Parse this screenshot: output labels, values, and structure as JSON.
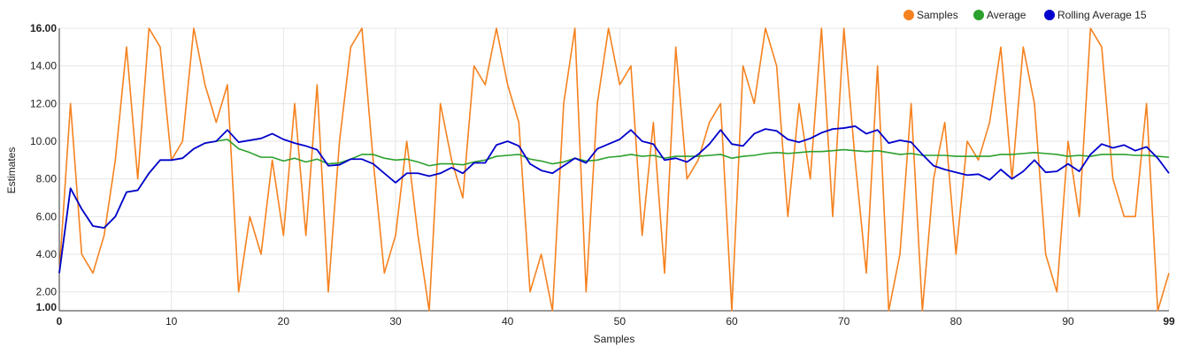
{
  "chart_data": {
    "type": "line",
    "xlabel": "Samples",
    "ylabel": "Estimates",
    "xlim": [
      0,
      99
    ],
    "ylim": [
      1,
      16
    ],
    "x_ticks": [
      {
        "value": 0,
        "label": "0"
      },
      {
        "value": 10,
        "label": "10"
      },
      {
        "value": 20,
        "label": "20"
      },
      {
        "value": 30,
        "label": "30"
      },
      {
        "value": 40,
        "label": "40"
      },
      {
        "value": 50,
        "label": "50"
      },
      {
        "value": 60,
        "label": "60"
      },
      {
        "value": 70,
        "label": "70"
      },
      {
        "value": 80,
        "label": "80"
      },
      {
        "value": 90,
        "label": "90"
      },
      {
        "value": 99,
        "label": "99"
      }
    ],
    "y_ticks": [
      {
        "value": 1,
        "label": "1.00"
      },
      {
        "value": 2,
        "label": "2.00"
      },
      {
        "value": 4,
        "label": "4.00"
      },
      {
        "value": 6,
        "label": "6.00"
      },
      {
        "value": 8,
        "label": "8.00"
      },
      {
        "value": 10,
        "label": "10.00"
      },
      {
        "value": 12,
        "label": "12.00"
      },
      {
        "value": 14,
        "label": "14.00"
      },
      {
        "value": 16,
        "label": "16.00"
      }
    ],
    "grid": true,
    "legend_position": "top-right",
    "series": [
      {
        "name": "Samples",
        "color": "#f5821f",
        "values": [
          3,
          12,
          4,
          3,
          5,
          9,
          15,
          8,
          16,
          15,
          9,
          10,
          16,
          13,
          11,
          13,
          2,
          6,
          4,
          9,
          5,
          12,
          5,
          13,
          2,
          10,
          15,
          16,
          9,
          3,
          5,
          10,
          5,
          1,
          12,
          9,
          7,
          14,
          13,
          16,
          13,
          11,
          2,
          4,
          1,
          12,
          16,
          2,
          12,
          16,
          13,
          14,
          5,
          11,
          3,
          15,
          8,
          9,
          11,
          12,
          1,
          14,
          12,
          16,
          14,
          6,
          12,
          8,
          16,
          6,
          16,
          9,
          3,
          14,
          1,
          4,
          12,
          1,
          8,
          11,
          4,
          10,
          9,
          11,
          15,
          8,
          15,
          12,
          4,
          2,
          10,
          6,
          16,
          15,
          8,
          6,
          6,
          12,
          1,
          3
        ]
      },
      {
        "name": "Average",
        "color": "#2ca02c",
        "values": [
          3,
          7.5,
          6.4,
          5.5,
          5.4,
          6,
          7.3,
          7.4,
          8.3,
          9,
          9,
          9.1,
          9.6,
          9.9,
          10,
          10.1,
          9.6,
          9.4,
          9.15,
          9.15,
          8.95,
          9.1,
          8.9,
          9.05,
          8.8,
          8.85,
          9.05,
          9.3,
          9.3,
          9.1,
          9,
          9.05,
          8.9,
          8.7,
          8.8,
          8.8,
          8.75,
          8.9,
          9,
          9.2,
          9.25,
          9.3,
          9.05,
          8.95,
          8.8,
          8.9,
          9.1,
          8.95,
          9,
          9.15,
          9.2,
          9.3,
          9.2,
          9.25,
          9.1,
          9.2,
          9.2,
          9.2,
          9.25,
          9.3,
          9.1,
          9.2,
          9.25,
          9.35,
          9.4,
          9.35,
          9.4,
          9.45,
          9.45,
          9.5,
          9.55,
          9.5,
          9.45,
          9.5,
          9.4,
          9.3,
          9.35,
          9.25,
          9.25,
          9.25,
          9.2,
          9.2,
          9.2,
          9.2,
          9.3,
          9.3,
          9.35,
          9.4,
          9.35,
          9.3,
          9.2,
          9.25,
          9.2,
          9.3,
          9.3,
          9.3,
          9.25,
          9.25,
          9.2,
          9.15
        ]
      },
      {
        "name": "Rolling Average 15",
        "color": "#0000cc",
        "values": [
          3,
          7.5,
          6.4,
          5.5,
          5.4,
          6,
          7.3,
          7.4,
          8.3,
          9,
          9,
          9.1,
          9.6,
          9.9,
          10,
          10.6,
          9.95,
          10.05,
          10.15,
          10.4,
          10.1,
          9.9,
          9.75,
          9.55,
          8.7,
          8.75,
          9.05,
          9.05,
          8.8,
          8.3,
          7.8,
          8.3,
          8.3,
          8.15,
          8.3,
          8.6,
          8.3,
          8.85,
          8.85,
          9.8,
          10,
          9.75,
          8.8,
          8.45,
          8.3,
          8.7,
          9.1,
          8.85,
          9.6,
          9.85,
          10.1,
          10.6,
          10,
          9.85,
          9,
          9.1,
          8.9,
          9.3,
          9.85,
          10.6,
          9.85,
          9.75,
          10.4,
          10.65,
          10.55,
          10.1,
          9.95,
          10.15,
          10.45,
          10.65,
          10.7,
          10.8,
          10.4,
          10.6,
          9.9,
          10.05,
          9.95,
          9.3,
          8.7,
          8.5,
          8.35,
          8.2,
          8.25,
          7.95,
          8.5,
          8,
          8.4,
          9,
          8.35,
          8.4,
          8.8,
          8.4,
          9.3,
          9.85,
          9.65,
          9.8,
          9.5,
          9.7,
          9.1,
          8.3
        ]
      }
    ]
  }
}
